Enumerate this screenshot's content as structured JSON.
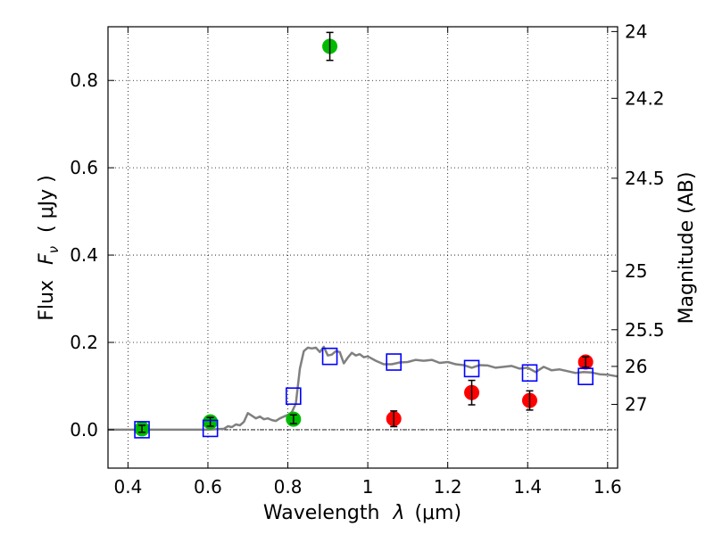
{
  "chart_data": {
    "type": "scatter",
    "title": "",
    "xlabel_text": "Wavelength",
    "xlabel_symbol": "λ",
    "xlabel_unit": "(μm)",
    "ylabel_text": "Flux",
    "ylabel_symbol": "F",
    "ylabel_subscript": "ν",
    "ylabel_unit": "( μJy )",
    "y2label": "Magnitude (AB)",
    "xlim": [
      0.35,
      1.625
    ],
    "ylim": [
      -0.088,
      0.923
    ],
    "xticks": [
      0.4,
      0.6,
      0.8,
      1.0,
      1.2,
      1.4,
      1.6
    ],
    "xtick_labels": [
      "0.4",
      "0.6",
      "0.8",
      "1",
      "1.2",
      "1.4",
      "1.6"
    ],
    "yticks": [
      0.0,
      0.2,
      0.4,
      0.6,
      0.8
    ],
    "ytick_labels": [
      "0.0",
      "0.2",
      "0.4",
      "0.6",
      "0.8"
    ],
    "y2_ticks": [
      {
        "label": "24",
        "flux": 0.912
      },
      {
        "label": "24.2",
        "flux": 0.759
      },
      {
        "label": "24.5",
        "flux": 0.576
      },
      {
        "label": "25",
        "flux": 0.363
      },
      {
        "label": "25.5",
        "flux": 0.229
      },
      {
        "label": "26",
        "flux": 0.145
      },
      {
        "label": "27",
        "flux": 0.058
      }
    ],
    "grid": true,
    "series": [
      {
        "marker": "circle",
        "color": "#00bb00",
        "x": [
          0.435,
          0.606,
          0.814,
          0.905
        ],
        "y": [
          0.002,
          0.018,
          0.024,
          0.878
        ],
        "yerr": [
          0.008,
          0.01,
          0.01,
          0.032
        ]
      },
      {
        "marker": "circle",
        "color": "#ff0000",
        "x": [
          1.065,
          1.26,
          1.405,
          1.545
        ],
        "y": [
          0.025,
          0.085,
          0.067,
          0.155
        ],
        "yerr": [
          0.018,
          0.028,
          0.022,
          0.012
        ]
      },
      {
        "marker": "square",
        "color": "#0000ff",
        "x": [
          0.435,
          0.606,
          0.814,
          0.905,
          1.065,
          1.26,
          1.405,
          1.545
        ],
        "y": [
          0.0,
          0.003,
          0.077,
          0.168,
          0.155,
          0.14,
          0.13,
          0.122
        ]
      },
      {
        "marker": "line",
        "color": "#808080",
        "x": [
          0.35,
          0.6,
          0.64,
          0.65,
          0.66,
          0.67,
          0.68,
          0.69,
          0.7,
          0.71,
          0.72,
          0.73,
          0.74,
          0.75,
          0.76,
          0.77,
          0.78,
          0.79,
          0.8,
          0.81,
          0.82,
          0.83,
          0.84,
          0.85,
          0.86,
          0.87,
          0.88,
          0.89,
          0.9,
          0.91,
          0.92,
          0.93,
          0.94,
          0.95,
          0.96,
          0.97,
          0.98,
          0.99,
          1.0,
          1.02,
          1.04,
          1.06,
          1.08,
          1.1,
          1.12,
          1.14,
          1.16,
          1.18,
          1.2,
          1.22,
          1.24,
          1.26,
          1.28,
          1.3,
          1.32,
          1.34,
          1.36,
          1.38,
          1.4,
          1.42,
          1.44,
          1.46,
          1.48,
          1.5,
          1.52,
          1.54,
          1.56,
          1.58,
          1.6,
          1.625
        ],
        "y": [
          0.0,
          0.0,
          0.002,
          0.008,
          0.006,
          0.012,
          0.01,
          0.018,
          0.038,
          0.032,
          0.026,
          0.03,
          0.024,
          0.026,
          0.022,
          0.02,
          0.026,
          0.03,
          0.034,
          0.04,
          0.06,
          0.14,
          0.18,
          0.188,
          0.186,
          0.188,
          0.178,
          0.19,
          0.17,
          0.172,
          0.18,
          0.178,
          0.152,
          0.165,
          0.176,
          0.17,
          0.173,
          0.166,
          0.168,
          0.158,
          0.15,
          0.15,
          0.154,
          0.155,
          0.16,
          0.158,
          0.16,
          0.153,
          0.155,
          0.15,
          0.148,
          0.142,
          0.148,
          0.147,
          0.142,
          0.144,
          0.146,
          0.14,
          0.142,
          0.132,
          0.144,
          0.136,
          0.138,
          0.134,
          0.13,
          0.132,
          0.131,
          0.127,
          0.126,
          0.122
        ]
      }
    ]
  }
}
